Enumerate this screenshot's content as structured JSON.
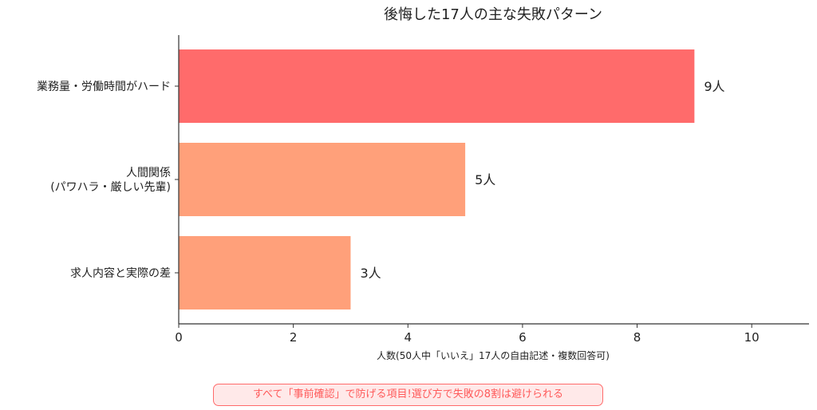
{
  "chart_data": {
    "type": "bar",
    "orientation": "horizontal",
    "title": "後悔した17人の主な失敗パターン",
    "xlabel": "人数(50人中「いいえ」17人の自由記述・複数回答可)",
    "ylabel": "",
    "xlim": [
      0,
      11
    ],
    "xticks": [
      0,
      2,
      4,
      6,
      8,
      10
    ],
    "categories": [
      [
        "業務量・労働時間がハード"
      ],
      [
        "人間関係",
        "(パワハラ・厳しい先輩)"
      ],
      [
        "求人内容と実際の差"
      ]
    ],
    "values": [
      9,
      5,
      3
    ],
    "value_labels": [
      "9人",
      "5人",
      "3人"
    ],
    "colors": [
      "#ff6b6b",
      "#ffa07a",
      "#ffa07a"
    ],
    "grid": false,
    "legend": "none"
  },
  "note": "すべて「事前確認」で防げる項目!選び方で失敗の8割は避けられる"
}
